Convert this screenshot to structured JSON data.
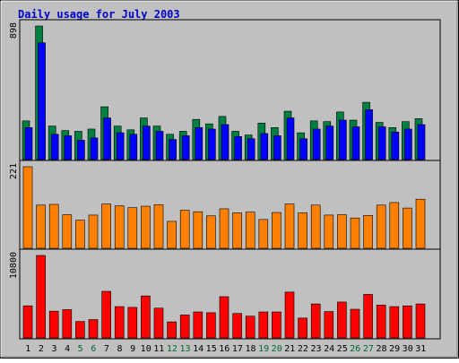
{
  "title": "Daily usage for July 2003",
  "colors": {
    "background": "#c0c0c0",
    "title_text": "#0000cc",
    "hits": "#008040",
    "files": "#0000ff",
    "pages": "#ff8000",
    "visits": "#ff0000",
    "kbytes": "#ff0000",
    "weekend_day_label": "#006633",
    "weekday_day_label": "#000000"
  },
  "chart_data": [
    {
      "type": "bar",
      "panel": "hits-files",
      "ylim": [
        0,
        898
      ],
      "y_tick_label": "898",
      "categories": [
        "1",
        "2",
        "3",
        "4",
        "5",
        "6",
        "7",
        "8",
        "9",
        "10",
        "11",
        "12",
        "13",
        "14",
        "15",
        "16",
        "17",
        "18",
        "19",
        "20",
        "21",
        "22",
        "23",
        "24",
        "25",
        "26",
        "27",
        "28",
        "29",
        "30",
        "31"
      ],
      "weekend_days": [
        "5",
        "6",
        "12",
        "13",
        "19",
        "20",
        "26",
        "27"
      ],
      "series": [
        {
          "values": [
            260,
            898,
            225,
            195,
            190,
            205,
            355,
            225,
            200,
            280,
            225,
            170,
            190,
            270,
            240,
            290,
            190,
            165,
            245,
            215,
            325,
            180,
            260,
            255,
            320,
            265,
            385,
            250,
            215,
            255,
            275
          ]
        },
        {
          "values": [
            215,
            785,
            170,
            160,
            130,
            145,
            280,
            180,
            170,
            225,
            190,
            135,
            160,
            215,
            205,
            235,
            155,
            140,
            175,
            160,
            280,
            140,
            205,
            225,
            265,
            220,
            335,
            220,
            185,
            205,
            235
          ]
        }
      ]
    },
    {
      "type": "bar",
      "panel": "pages",
      "ylim": [
        0,
        221
      ],
      "y_tick_label": "221",
      "categories": [
        "1",
        "2",
        "3",
        "4",
        "5",
        "6",
        "7",
        "8",
        "9",
        "10",
        "11",
        "12",
        "13",
        "14",
        "15",
        "16",
        "17",
        "18",
        "19",
        "20",
        "21",
        "22",
        "23",
        "24",
        "25",
        "26",
        "27",
        "28",
        "29",
        "30",
        "31"
      ],
      "series": [
        {
          "values": [
            221,
            117,
            119,
            91,
            76,
            90,
            120,
            115,
            110,
            114,
            118,
            73,
            103,
            99,
            88,
            107,
            96,
            98,
            78,
            97,
            120,
            96,
            117,
            90,
            91,
            82,
            89,
            117,
            124,
            109,
            133
          ]
        }
      ]
    },
    {
      "type": "bar",
      "panel": "kbytes",
      "ylim": [
        0,
        10800
      ],
      "y_tick_label": "10800",
      "categories": [
        "1",
        "2",
        "3",
        "4",
        "5",
        "6",
        "7",
        "8",
        "9",
        "10",
        "11",
        "12",
        "13",
        "14",
        "15",
        "16",
        "17",
        "18",
        "19",
        "20",
        "21",
        "22",
        "23",
        "24",
        "25",
        "26",
        "27",
        "28",
        "29",
        "30",
        "31"
      ],
      "series": [
        {
          "values": [
            4200,
            10800,
            3500,
            3700,
            2150,
            2400,
            6100,
            4100,
            4000,
            5500,
            3900,
            2100,
            3000,
            3400,
            3300,
            5400,
            3200,
            2850,
            3400,
            3400,
            6000,
            2600,
            4450,
            3450,
            4700,
            3750,
            5700,
            4300,
            4100,
            4200,
            4450
          ]
        }
      ]
    }
  ]
}
